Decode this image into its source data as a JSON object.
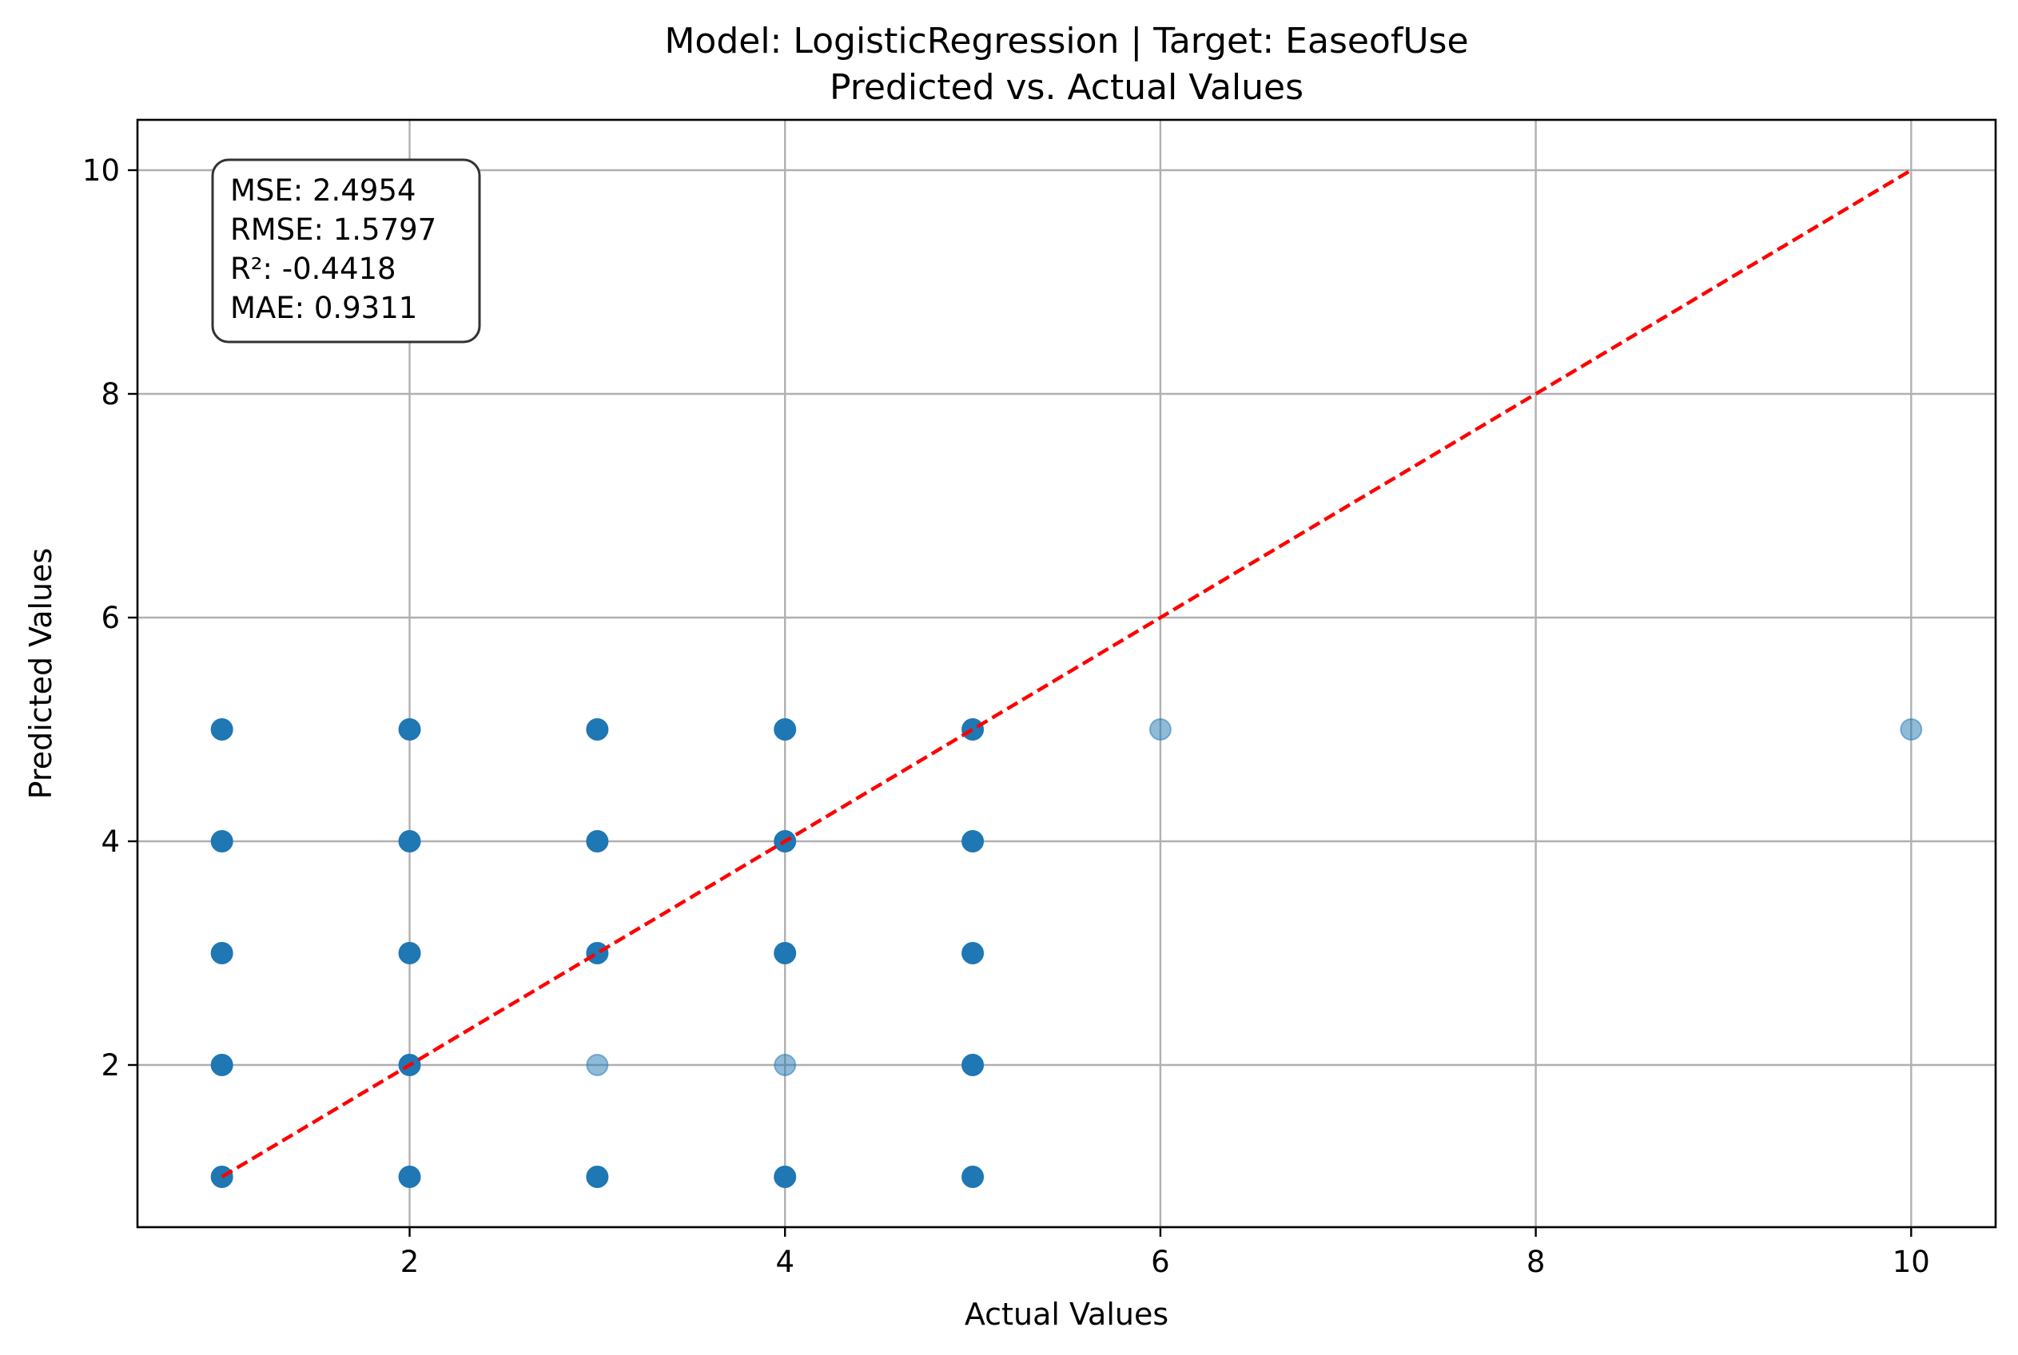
{
  "chart_data": {
    "type": "scatter",
    "title": "Model: LogisticRegression | Target: EaseofUse",
    "subtitle": "Predicted vs. Actual Values",
    "xlabel": "Actual Values",
    "ylabel": "Predicted Values",
    "xlim": [
      0.55,
      10.45
    ],
    "ylim": [
      0.55,
      10.45
    ],
    "xticks": [
      2,
      4,
      6,
      8,
      10
    ],
    "yticks": [
      2,
      4,
      6,
      8,
      10
    ],
    "grid": true,
    "colors": {
      "points": "#1f77b4",
      "reference_line": "#ff0000",
      "grid": "#b0b0b0"
    },
    "points_strong": [
      [
        1,
        1
      ],
      [
        1,
        2
      ],
      [
        1,
        3
      ],
      [
        1,
        4
      ],
      [
        1,
        5
      ],
      [
        2,
        1
      ],
      [
        2,
        2
      ],
      [
        2,
        3
      ],
      [
        2,
        4
      ],
      [
        2,
        5
      ],
      [
        3,
        1
      ],
      [
        3,
        3
      ],
      [
        3,
        4
      ],
      [
        3,
        5
      ],
      [
        4,
        1
      ],
      [
        4,
        3
      ],
      [
        4,
        4
      ],
      [
        4,
        5
      ],
      [
        5,
        1
      ],
      [
        5,
        2
      ],
      [
        5,
        3
      ],
      [
        5,
        4
      ],
      [
        5,
        5
      ]
    ],
    "points_faint": [
      [
        3,
        2
      ],
      [
        4,
        2
      ],
      [
        6,
        5
      ],
      [
        10,
        5
      ]
    ],
    "reference_line": {
      "from": [
        1,
        1
      ],
      "to": [
        10,
        10
      ],
      "style": "dashed"
    },
    "stats_box": {
      "placement": "top-left",
      "lines": [
        "MSE: 2.4954",
        "RMSE: 1.5797",
        "R²: -0.4418",
        "MAE: 0.9311"
      ]
    }
  }
}
